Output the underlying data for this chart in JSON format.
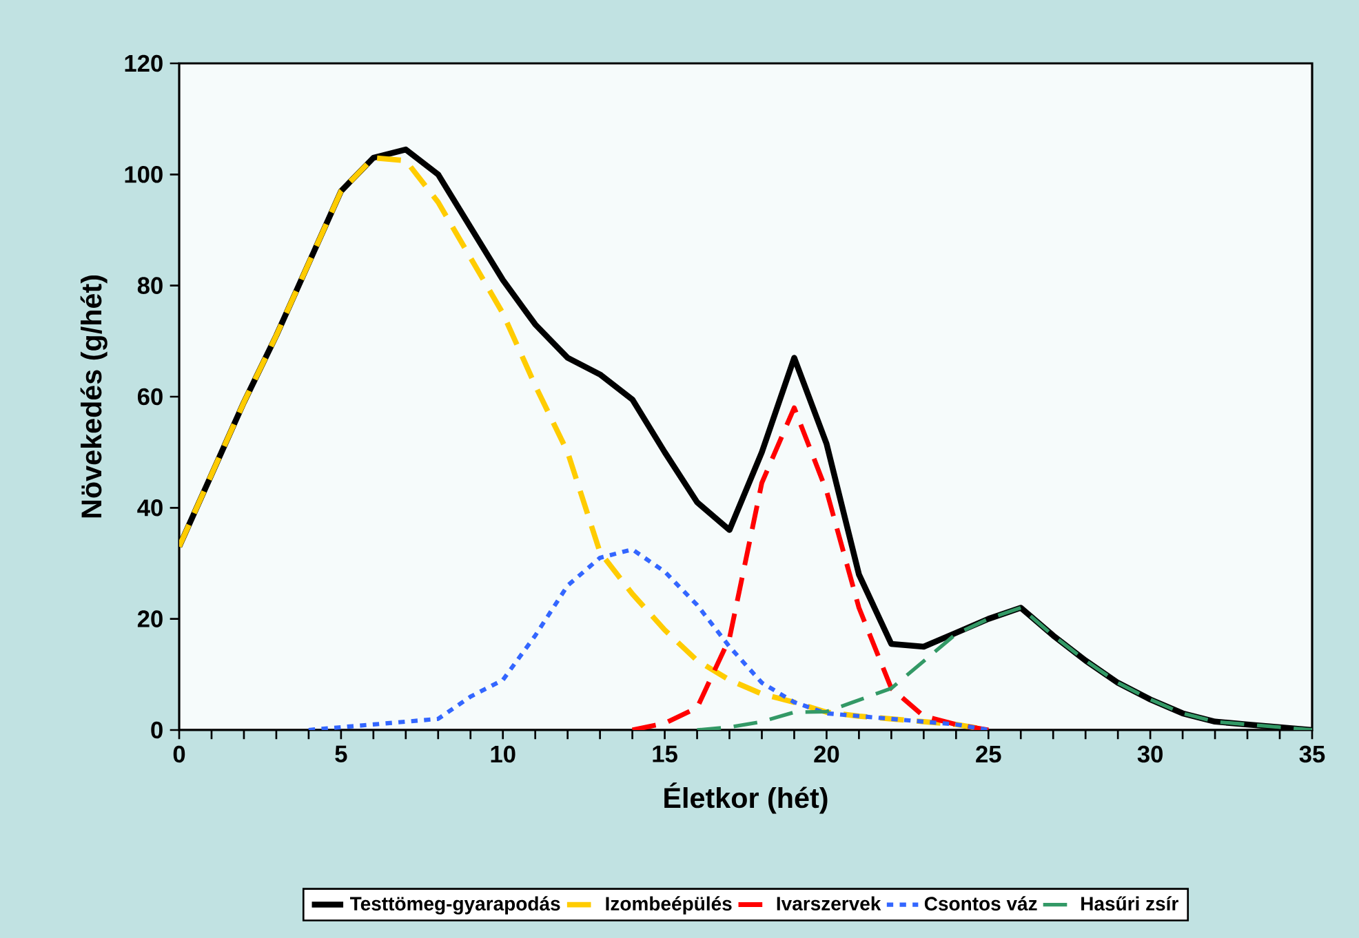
{
  "chart_data": {
    "type": "line",
    "xlabel": "Életkor (hét)",
    "ylabel": "Növekedés (g/hét)",
    "x": [
      0,
      1,
      2,
      3,
      4,
      5,
      6,
      7,
      8,
      9,
      10,
      11,
      12,
      13,
      14,
      15,
      16,
      17,
      18,
      19,
      20,
      21,
      22,
      23,
      24,
      25,
      26,
      27,
      28,
      29,
      30,
      31,
      32,
      33,
      34,
      35
    ],
    "series": [
      {
        "name": "Testtömeg-gyarapodás",
        "color": "#000000",
        "line_style": "solid",
        "values": [
          33,
          46,
          59,
          71,
          84,
          97,
          103,
          104.5,
          100,
          90.5,
          81,
          73,
          67,
          64,
          59.5,
          50,
          41,
          36,
          50,
          67,
          51.5,
          28,
          15.5,
          15,
          17.5,
          20,
          22,
          17,
          12.5,
          8.5,
          5.5,
          3,
          1.5,
          1,
          0.5,
          0
        ]
      },
      {
        "name": "Izombeépülés",
        "color": "#ffcc00",
        "line_style": "dashed",
        "values": [
          33,
          46,
          59,
          71,
          84,
          97,
          103,
          102.5,
          95,
          85,
          75,
          62,
          50,
          32,
          24.5,
          18,
          12.5,
          9,
          6.5,
          5,
          3.2,
          2.5,
          2,
          1.5,
          1,
          0,
          null,
          null,
          null,
          null,
          null,
          null,
          null,
          null,
          null,
          null
        ]
      },
      {
        "name": "Ivarszervek",
        "color": "#ff0000",
        "line_style": "dashed",
        "values": [
          null,
          null,
          null,
          null,
          null,
          null,
          null,
          null,
          null,
          null,
          null,
          null,
          null,
          null,
          0,
          1.2,
          4,
          16.5,
          44.5,
          58,
          43,
          22,
          7.5,
          2.5,
          1,
          0,
          null,
          null,
          null,
          null,
          null,
          null,
          null,
          null,
          null,
          null
        ]
      },
      {
        "name": "Csontos váz",
        "color": "#3366ff",
        "line_style": "dotted",
        "values": [
          null,
          null,
          null,
          null,
          0,
          0.5,
          1,
          1.5,
          2,
          6,
          9,
          17,
          26,
          31,
          32.5,
          28.5,
          22.5,
          15,
          8.5,
          5,
          3,
          2.5,
          2,
          1.5,
          1,
          0,
          null,
          null,
          null,
          null,
          null,
          null,
          null,
          null,
          null,
          null
        ]
      },
      {
        "name": "Hasűri zsír",
        "color": "#339966",
        "line_style": "dashed",
        "values": [
          null,
          null,
          null,
          null,
          null,
          null,
          null,
          null,
          null,
          null,
          null,
          null,
          null,
          null,
          null,
          null,
          0,
          0.5,
          1.5,
          3.2,
          3.3,
          5.4,
          7.5,
          12.4,
          17.3,
          20,
          22,
          17,
          12.5,
          8.5,
          5.5,
          3,
          1.5,
          1,
          0.5,
          0
        ]
      }
    ],
    "xlim": [
      0,
      35
    ],
    "ylim": [
      0,
      120
    ],
    "xticks": [
      0,
      {
        "value": 1,
        "label": null
      },
      {
        "value": 2,
        "label": null
      },
      {
        "value": 3,
        "label": null
      },
      {
        "value": 4,
        "label": null
      },
      5,
      {
        "value": 6,
        "label": null
      },
      {
        "value": 7,
        "label": null
      },
      {
        "value": 8,
        "label": null
      },
      {
        "value": 9,
        "label": null
      },
      10,
      {
        "value": 11,
        "label": null
      },
      {
        "value": 12,
        "label": null
      },
      {
        "value": 13,
        "label": null
      },
      {
        "value": 14,
        "label": null
      },
      15,
      {
        "value": 16,
        "label": null
      },
      {
        "value": 17,
        "label": null
      },
      {
        "value": 18,
        "label": null
      },
      {
        "value": 19,
        "label": null
      },
      20,
      {
        "value": 21,
        "label": null
      },
      {
        "value": 22,
        "label": null
      },
      {
        "value": 23,
        "label": null
      },
      {
        "value": 24,
        "label": null
      },
      25,
      {
        "value": 26,
        "label": null
      },
      {
        "value": 27,
        "label": null
      },
      {
        "value": 28,
        "label": null
      },
      {
        "value": 29,
        "label": null
      },
      30,
      {
        "value": 31,
        "label": null
      },
      {
        "value": 32,
        "label": null
      },
      {
        "value": 33,
        "label": null
      },
      {
        "value": 34,
        "label": null
      },
      35
    ],
    "yticks": [
      0,
      20,
      40,
      60,
      80,
      100,
      120
    ],
    "grid": false,
    "legend": "bottom",
    "marker": "none"
  }
}
